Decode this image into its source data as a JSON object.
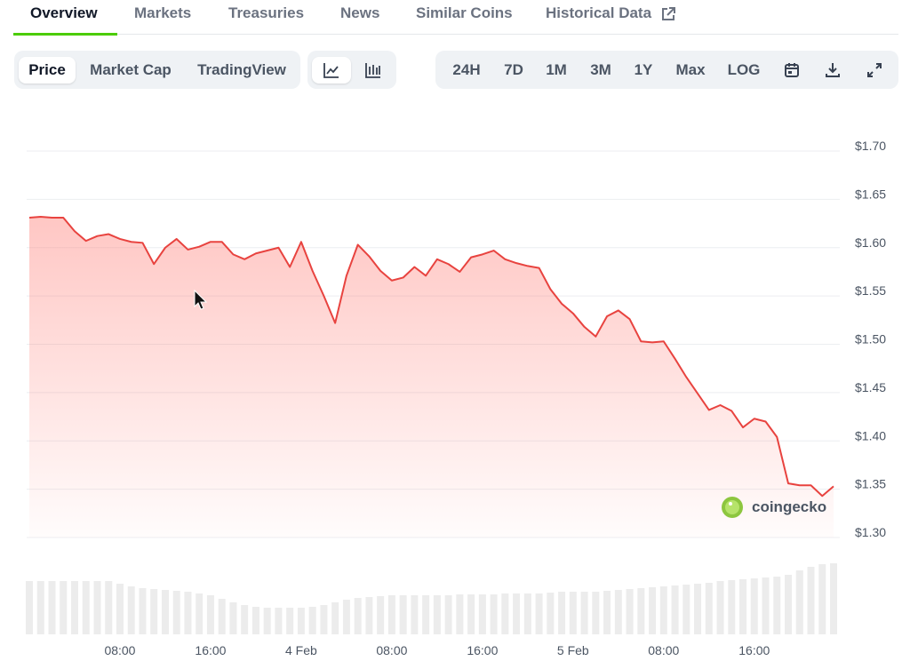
{
  "tabs": [
    "Overview",
    "Markets",
    "Treasuries",
    "News",
    "Similar Coins",
    "Historical Data"
  ],
  "view_buttons": [
    "Price",
    "Market Cap",
    "TradingView"
  ],
  "range_buttons": [
    "24H",
    "7D",
    "1M",
    "3M",
    "1Y",
    "Max",
    "LOG"
  ],
  "watermark": "coingecko",
  "chart_data": {
    "type": "line",
    "categories": [
      null,
      null,
      null,
      null,
      null,
      null,
      null,
      null,
      "08:00",
      null,
      null,
      null,
      null,
      null,
      null,
      null,
      "16:00",
      null,
      null,
      null,
      null,
      null,
      null,
      null,
      "4 Feb",
      null,
      null,
      null,
      null,
      null,
      null,
      null,
      "08:00",
      null,
      null,
      null,
      null,
      null,
      null,
      null,
      "16:00",
      null,
      null,
      null,
      null,
      null,
      null,
      null,
      "5 Feb",
      null,
      null,
      null,
      null,
      null,
      null,
      null,
      "08:00",
      null,
      null,
      null,
      null,
      null,
      null,
      null,
      "16:00",
      null,
      null,
      null,
      null,
      null,
      null,
      null
    ],
    "series": [
      {
        "color": "#e8433f",
        "values": [
          1.631,
          1.632,
          1.631,
          1.631,
          1.617,
          1.607,
          1.612,
          1.614,
          1.609,
          1.606,
          1.605,
          1.583,
          1.6,
          1.609,
          1.598,
          1.601,
          1.606,
          1.606,
          1.593,
          1.588,
          1.594,
          1.597,
          1.6,
          1.58,
          1.606,
          1.576,
          1.55,
          1.522,
          1.571,
          1.603,
          1.591,
          1.576,
          1.566,
          1.569,
          1.58,
          1.571,
          1.588,
          1.583,
          1.575,
          1.59,
          1.593,
          1.597,
          1.588,
          1.584,
          1.581,
          1.579,
          1.557,
          1.542,
          1.532,
          1.518,
          1.508,
          1.529,
          1.535,
          1.526,
          1.503,
          1.502,
          1.503,
          1.485,
          1.466,
          1.449,
          1.432,
          1.437,
          1.431,
          1.414,
          1.423,
          1.42,
          1.404,
          1.356,
          1.354,
          1.354,
          1.343,
          1.353
        ]
      }
    ],
    "volume": {
      "color": "#ececec",
      "values": [
        60,
        60,
        60,
        60,
        60,
        60,
        60,
        60,
        57,
        54,
        52,
        51,
        50,
        49,
        48,
        46,
        44,
        40,
        36,
        33,
        31,
        30,
        30,
        30,
        30,
        31,
        33,
        36,
        39,
        41,
        42,
        43,
        44,
        44,
        44,
        44,
        44,
        44,
        45,
        45,
        45,
        45,
        46,
        46,
        46,
        46,
        47,
        48,
        48,
        48,
        48,
        49,
        50,
        51,
        52,
        53,
        54,
        55,
        56,
        57,
        58,
        60,
        61,
        62,
        63,
        64,
        65,
        67,
        72,
        76,
        79,
        80
      ]
    },
    "ylim": [
      1.3,
      1.7
    ],
    "yticks": [
      {
        "value": 1.7,
        "label": "$1.70"
      },
      {
        "value": 1.65,
        "label": "$1.65"
      },
      {
        "value": 1.6,
        "label": "$1.60"
      },
      {
        "value": 1.55,
        "label": "$1.55"
      },
      {
        "value": 1.5,
        "label": "$1.50"
      },
      {
        "value": 1.45,
        "label": "$1.45"
      },
      {
        "value": 1.4,
        "label": "$1.40"
      },
      {
        "value": 1.35,
        "label": "$1.35"
      },
      {
        "value": 1.3,
        "label": "$1.30"
      }
    ],
    "grid": true
  }
}
